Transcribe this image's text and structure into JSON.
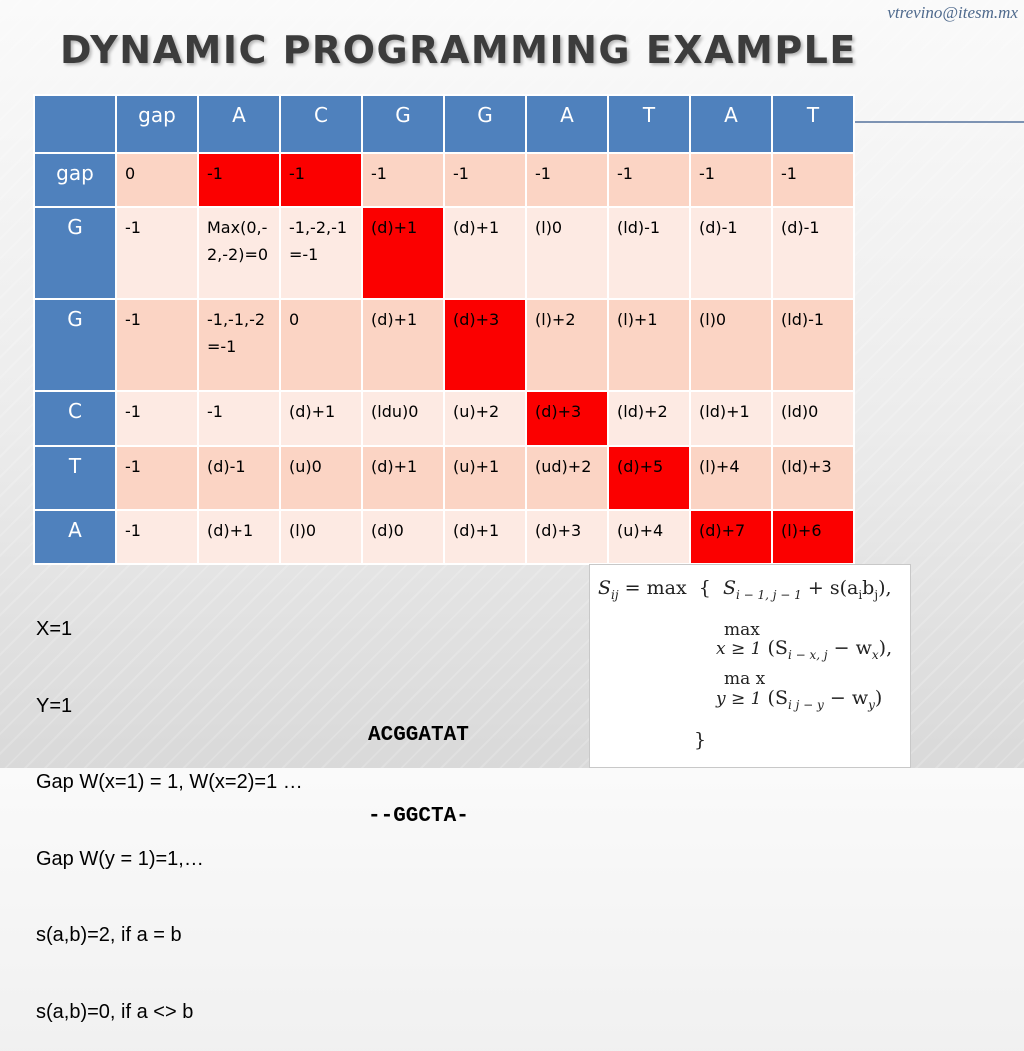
{
  "email": "vtrevino@itesm.mx",
  "title": "DYNAMIC PROGRAMMING EXAMPLE",
  "table": {
    "columns": [
      "",
      "gap",
      "A",
      "C",
      "G",
      "G",
      "A",
      "T",
      "A",
      "T"
    ],
    "rows": [
      {
        "label": "gap",
        "cells": [
          "0",
          "-1",
          "-1",
          "-1",
          "-1",
          "-1",
          "-1",
          "-1",
          "-1"
        ]
      },
      {
        "label": "G",
        "cells": [
          "-1",
          "Max(0,-2,-2)=0",
          "-1,-2,-1=-1",
          "(d)+1",
          "(d)+1",
          "(l)0",
          "(ld)-1",
          "(d)-1",
          "(d)-1"
        ]
      },
      {
        "label": "G",
        "cells": [
          "-1",
          "-1,-1,-2=-1",
          "0",
          "(d)+1",
          "(d)+3",
          "(l)+2",
          "(l)+1",
          "(l)0",
          "(ld)-1"
        ]
      },
      {
        "label": "C",
        "cells": [
          "-1",
          "-1",
          "(d)+1",
          "(ldu)0",
          "(u)+2",
          "(d)+3",
          "(ld)+2",
          "(ld)+1",
          "(ld)0"
        ]
      },
      {
        "label": "T",
        "cells": [
          "-1",
          "(d)-1",
          "(u)0",
          "(d)+1",
          "(u)+1",
          "(ud)+2",
          "(d)+5",
          "(l)+4",
          "(ld)+3"
        ]
      },
      {
        "label": "A",
        "cells": [
          "-1",
          "(d)+1",
          "(l)0",
          "(d)0",
          "(d)+1",
          "(d)+3",
          "(u)+4",
          "(d)+7",
          "(l)+6"
        ]
      }
    ],
    "highlighted_cells": [
      [
        0,
        1
      ],
      [
        0,
        2
      ],
      [
        1,
        3
      ],
      [
        2,
        4
      ],
      [
        3,
        5
      ],
      [
        4,
        6
      ],
      [
        5,
        7
      ],
      [
        5,
        8
      ]
    ],
    "highlight_color": "#fb0000",
    "header_color": "#4f81bd"
  },
  "notes": [
    "X=1",
    "Y=1",
    "Gap W(x=1) = 1, W(x=2)=1 …",
    "Gap W(y = 1)=1,…",
    "s(a,b)=2, if a = b",
    "s(a,b)=0, if a <> b"
  ],
  "alignment": [
    "ACGGATAT",
    "--GGCTA-"
  ],
  "formula": {
    "lhs": "S",
    "lhs_sub": "ij",
    "eq": "= max",
    "brace_open": "{",
    "term1": "S",
    "term1_sub": "i − 1, j − 1",
    "term1_rest": "+ s(a",
    "term1_a_sub": "i",
    "term1_mid": "b",
    "term1_b_sub": "j",
    "term1_end": "),",
    "max2": "max",
    "cond2": "x ≥ 1",
    "term2": "(S",
    "term2_sub": "i − x, j",
    "term2_rest": "− w",
    "term2_w_sub": "x",
    "term2_end": "),",
    "max3": "ma x",
    "cond3": "y ≥ 1",
    "term3": "(S",
    "term3_sub": "i j − y",
    "term3_rest": "− w",
    "term3_w_sub": "y",
    "term3_end": ")",
    "brace_close": "}"
  }
}
